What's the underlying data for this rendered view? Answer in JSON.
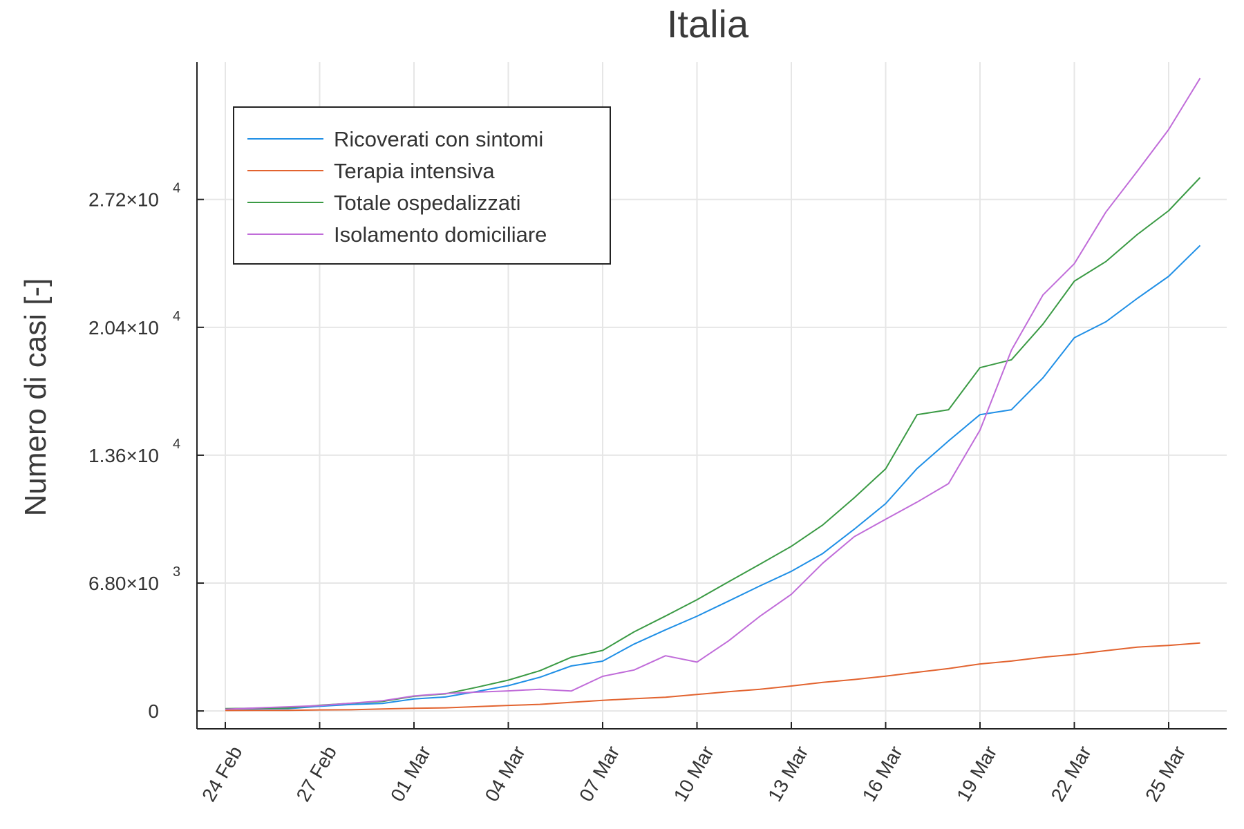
{
  "chart_data": {
    "type": "line",
    "title": "Italia",
    "xlabel": "",
    "ylabel": "Numero di casi [-]",
    "x_tick_labels": [
      "24 Feb",
      "27 Feb",
      "01 Mar",
      "04 Mar",
      "07 Mar",
      "10 Mar",
      "13 Mar",
      "16 Mar",
      "19 Mar",
      "22 Mar",
      "25 Mar"
    ],
    "y_ticks": [
      {
        "value": 0,
        "mantissa": "0",
        "exponent": ""
      },
      {
        "value": 6800,
        "mantissa": "6.80×10",
        "exponent": "3"
      },
      {
        "value": 13600,
        "mantissa": "1.36×10",
        "exponent": "4"
      },
      {
        "value": 20400,
        "mantissa": "2.04×10",
        "exponent": "4"
      },
      {
        "value": 27200,
        "mantissa": "2.72×10",
        "exponent": "4"
      }
    ],
    "ylim": [
      -950,
      34500
    ],
    "x": [
      "24 Feb",
      "25 Feb",
      "26 Feb",
      "27 Feb",
      "28 Feb",
      "29 Feb",
      "01 Mar",
      "02 Mar",
      "03 Mar",
      "04 Mar",
      "05 Mar",
      "06 Mar",
      "07 Mar",
      "08 Mar",
      "09 Mar",
      "10 Mar",
      "11 Mar",
      "12 Mar",
      "13 Mar",
      "14 Mar",
      "15 Mar",
      "16 Mar",
      "17 Mar",
      "18 Mar",
      "19 Mar",
      "20 Mar",
      "21 Mar",
      "22 Mar",
      "23 Mar",
      "24 Mar",
      "25 Mar",
      "26 Mar"
    ],
    "grid": true,
    "legend_position": "top-left",
    "series": [
      {
        "name": "Ricoverati con sintomi",
        "color": "#1f8fe6",
        "values": [
          101,
          114,
          128,
          248,
          345,
          401,
          639,
          742,
          1034,
          1346,
          1790,
          2394,
          2651,
          3557,
          4316,
          5038,
          5838,
          6650,
          7426,
          8372,
          9663,
          11025,
          12894,
          14363,
          15757,
          16020,
          17708,
          19846,
          20692,
          21937,
          23112,
          24753
        ]
      },
      {
        "name": "Terapia intensiva",
        "color": "#e2632f",
        "values": [
          26,
          35,
          36,
          56,
          64,
          105,
          140,
          166,
          229,
          295,
          351,
          462,
          567,
          650,
          733,
          877,
          1028,
          1153,
          1328,
          1518,
          1672,
          1851,
          2060,
          2257,
          2498,
          2655,
          2857,
          3009,
          3204,
          3396,
          3489,
          3612
        ]
      },
      {
        "name": "Totale ospedalizzati",
        "color": "#3a9a44",
        "values": [
          127,
          150,
          164,
          304,
          409,
          506,
          779,
          908,
          1263,
          1641,
          2141,
          2856,
          3218,
          4207,
          5049,
          5915,
          6866,
          7803,
          8754,
          9890,
          11335,
          12876,
          15757,
          16020,
          18255,
          18675,
          20565,
          22855,
          23896,
          25333,
          26601,
          28365
        ]
      },
      {
        "name": "Isolamento domiciliare",
        "color": "#c06cd9",
        "values": [
          94,
          162,
          221,
          284,
          412,
          543,
          798,
          927,
          1000,
          1065,
          1155,
          1060,
          1843,
          2180,
          2936,
          2599,
          3724,
          5036,
          6201,
          7860,
          9268,
          10197,
          11108,
          12090,
          14935,
          19185,
          22116,
          23783,
          26522,
          28697,
          30920,
          33648
        ]
      }
    ]
  }
}
